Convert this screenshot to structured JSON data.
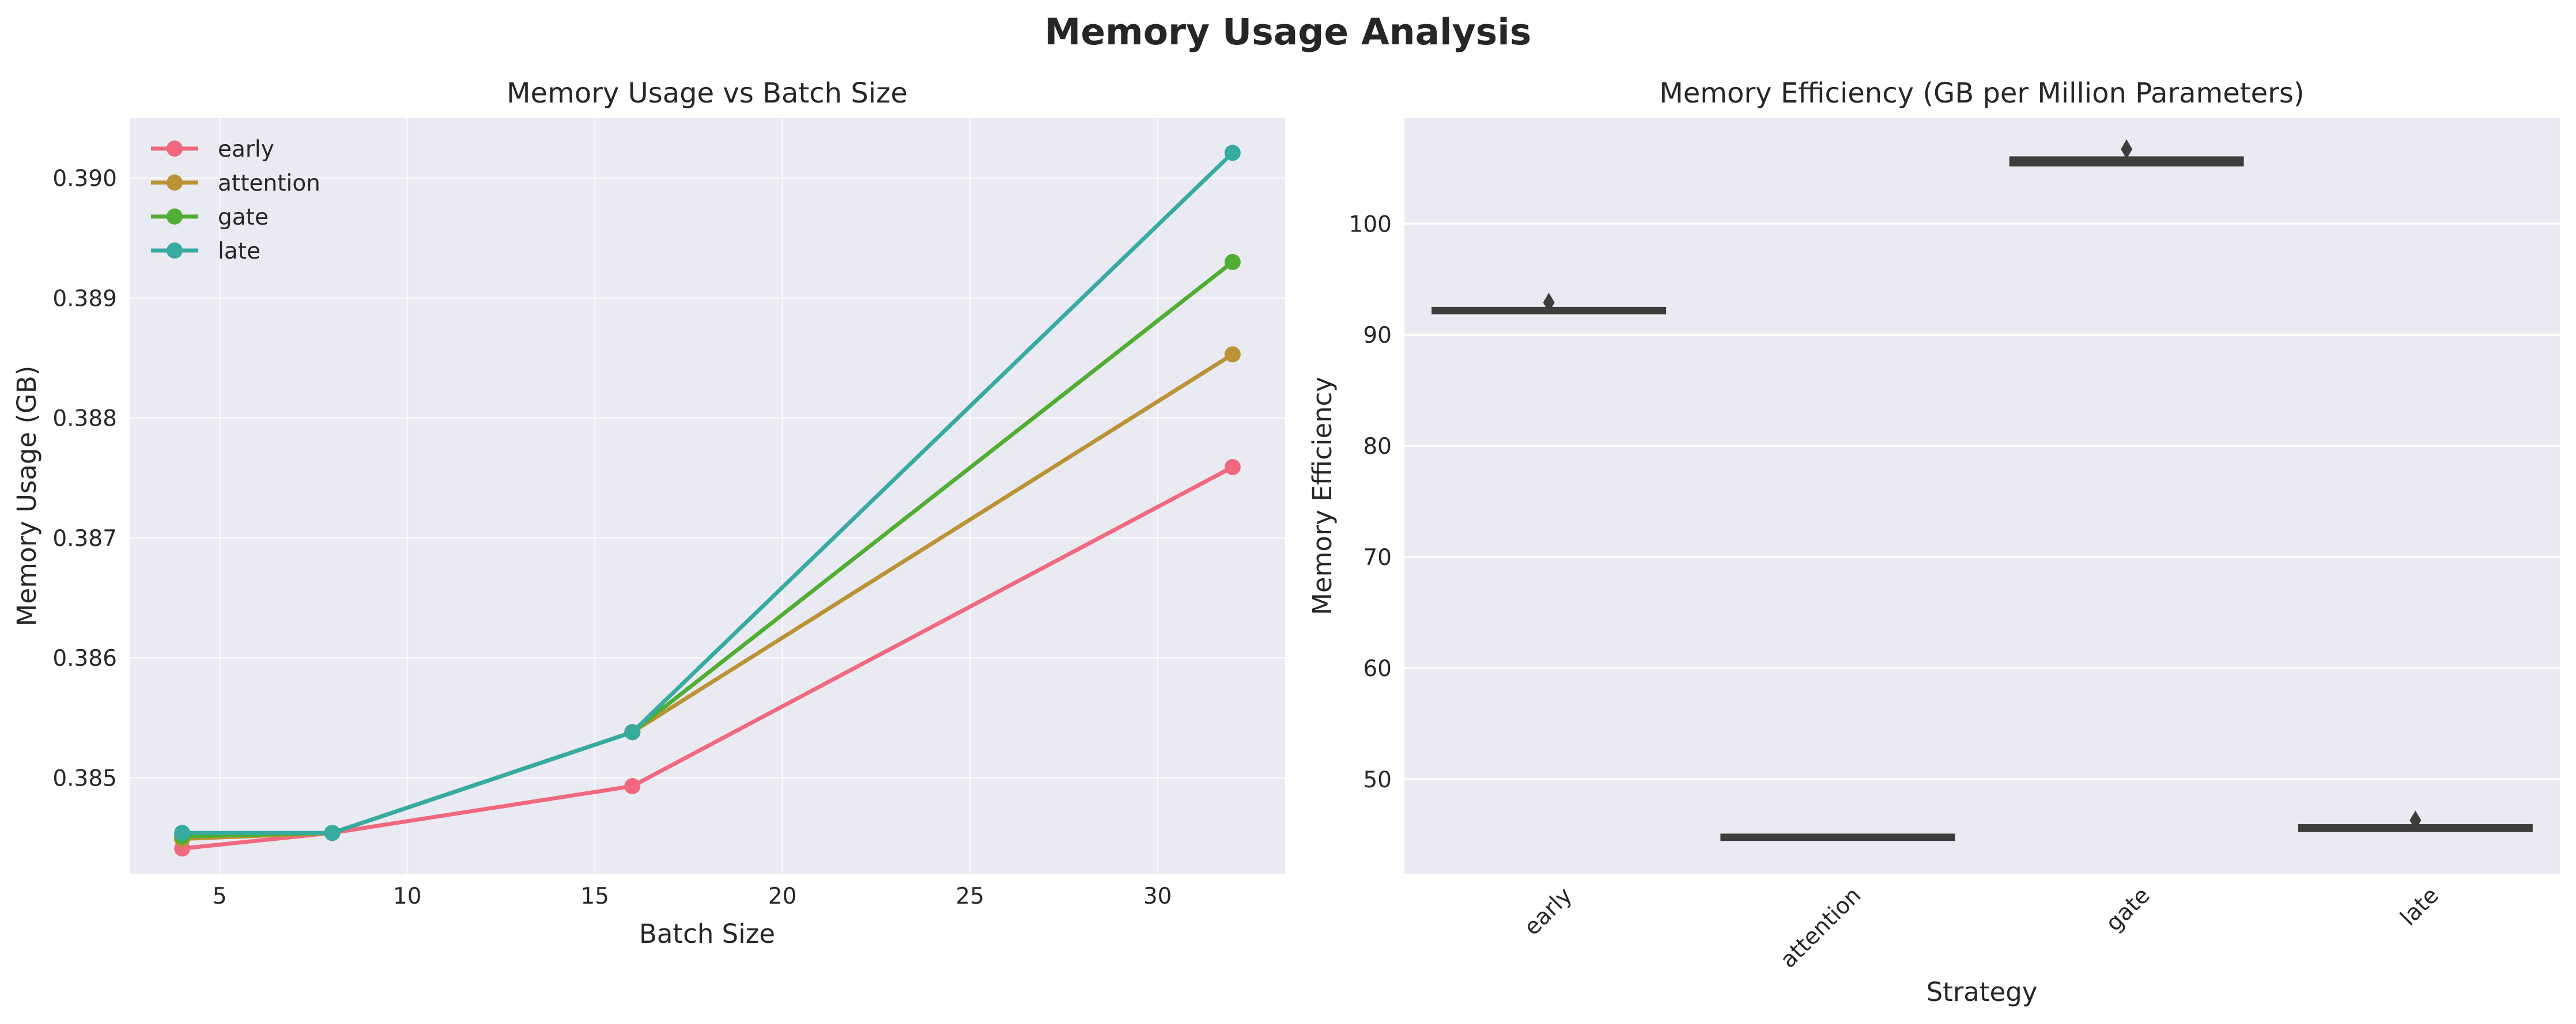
{
  "figure": {
    "title": "Memory Usage Analysis"
  },
  "chart_data": [
    {
      "type": "line",
      "title": "Memory Usage vs Batch Size",
      "xlabel": "Batch Size",
      "ylabel": "Memory Usage (GB)",
      "xlim": [
        2.6,
        33.4
      ],
      "ylim": [
        0.3842,
        0.3905
      ],
      "xticks": [
        5,
        10,
        15,
        20,
        25,
        30
      ],
      "yticks": [
        0.385,
        0.386,
        0.387,
        0.388,
        0.389,
        0.39
      ],
      "ytick_labels": [
        "0.385",
        "0.386",
        "0.387",
        "0.388",
        "0.389",
        "0.390"
      ],
      "grid": true,
      "legend": "top-left",
      "x": [
        4,
        8,
        16,
        32
      ],
      "series": [
        {
          "name": "early",
          "color": "#f0697f",
          "values": [
            0.38441,
            0.38454,
            0.38493,
            0.38759
          ]
        },
        {
          "name": "attention",
          "color": "#bb9336",
          "values": [
            0.38449,
            0.38454,
            0.38538,
            0.38853
          ]
        },
        {
          "name": "gate",
          "color": "#4fae33",
          "values": [
            0.38451,
            0.38454,
            0.38538,
            0.3893
          ]
        },
        {
          "name": "late",
          "color": "#37aba0",
          "values": [
            0.38454,
            0.38454,
            0.38538,
            0.39021
          ]
        }
      ]
    },
    {
      "type": "box",
      "title": "Memory Efficiency (GB per Million Parameters)",
      "xlabel": "Strategy",
      "ylabel": "Memory Efficiency",
      "ylim": [
        41.5,
        109.5
      ],
      "yticks": [
        50,
        60,
        70,
        80,
        90,
        100
      ],
      "ytick_labels": [
        "50",
        "60",
        "70",
        "80",
        "90",
        "100"
      ],
      "grid": true,
      "categories": [
        "early",
        "attention",
        "gate",
        "late"
      ],
      "boxes": [
        {
          "category": "early",
          "q1": 92.0,
          "median": 92.1,
          "q3": 92.35,
          "whislo": 92.0,
          "whishi": 92.35,
          "fliers": [
            92.9
          ]
        },
        {
          "category": "attention",
          "q1": 44.6,
          "median": 44.75,
          "q3": 44.95,
          "whislo": 44.6,
          "whishi": 45.0,
          "fliers": []
        },
        {
          "category": "gate",
          "q1": 105.3,
          "median": 105.6,
          "q3": 105.9,
          "whislo": 105.3,
          "whishi": 105.9,
          "fliers": [
            106.7
          ]
        },
        {
          "category": "late",
          "q1": 45.4,
          "median": 45.6,
          "q3": 45.8,
          "whislo": 45.4,
          "whishi": 45.8,
          "fliers": [
            46.3
          ]
        }
      ],
      "box_color": "#3d3d3d"
    }
  ]
}
